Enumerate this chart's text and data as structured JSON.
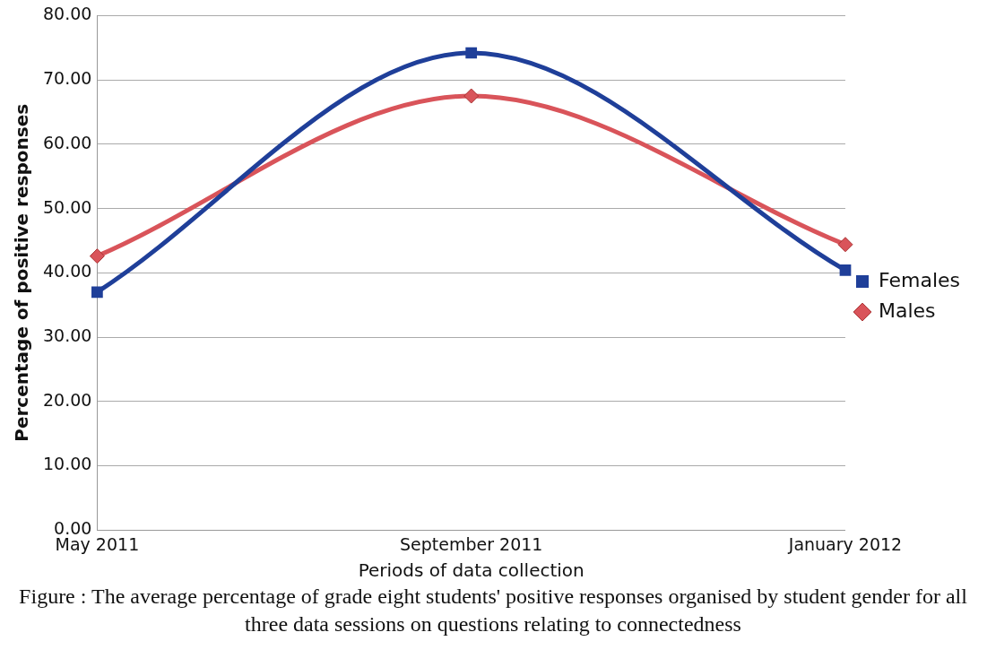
{
  "chart_data": {
    "type": "line",
    "xlabel": "Periods of data collection",
    "ylabel": "Percentage of positive responses",
    "categories": [
      "May 2011",
      "September 2011",
      "January 2012"
    ],
    "series": [
      {
        "name": "Females",
        "color": "#1f3f99",
        "values": [
          37.0,
          74.2,
          40.4
        ],
        "marker": "square"
      },
      {
        "name": "Males",
        "color": "#d9545a",
        "values": [
          42.6,
          67.5,
          44.4
        ],
        "marker": "diamond"
      }
    ],
    "ylim": [
      0,
      80
    ],
    "yticks": [
      {
        "value": 0,
        "label": "0.00"
      },
      {
        "value": 10,
        "label": "10.00"
      },
      {
        "value": 20,
        "label": "20.00"
      },
      {
        "value": 30,
        "label": "30.00"
      },
      {
        "value": 40,
        "label": "40.00"
      },
      {
        "value": 50,
        "label": "50.00"
      },
      {
        "value": 60,
        "label": "60.00"
      },
      {
        "value": 70,
        "label": "70.00"
      },
      {
        "value": 80,
        "label": "80.00"
      }
    ],
    "grid": "y",
    "legend": "right",
    "annotations": [
      "Figure : The average percentage of grade eight students' positive responses organised by student gender for all three data sessions on questions relating to connectedness"
    ]
  }
}
